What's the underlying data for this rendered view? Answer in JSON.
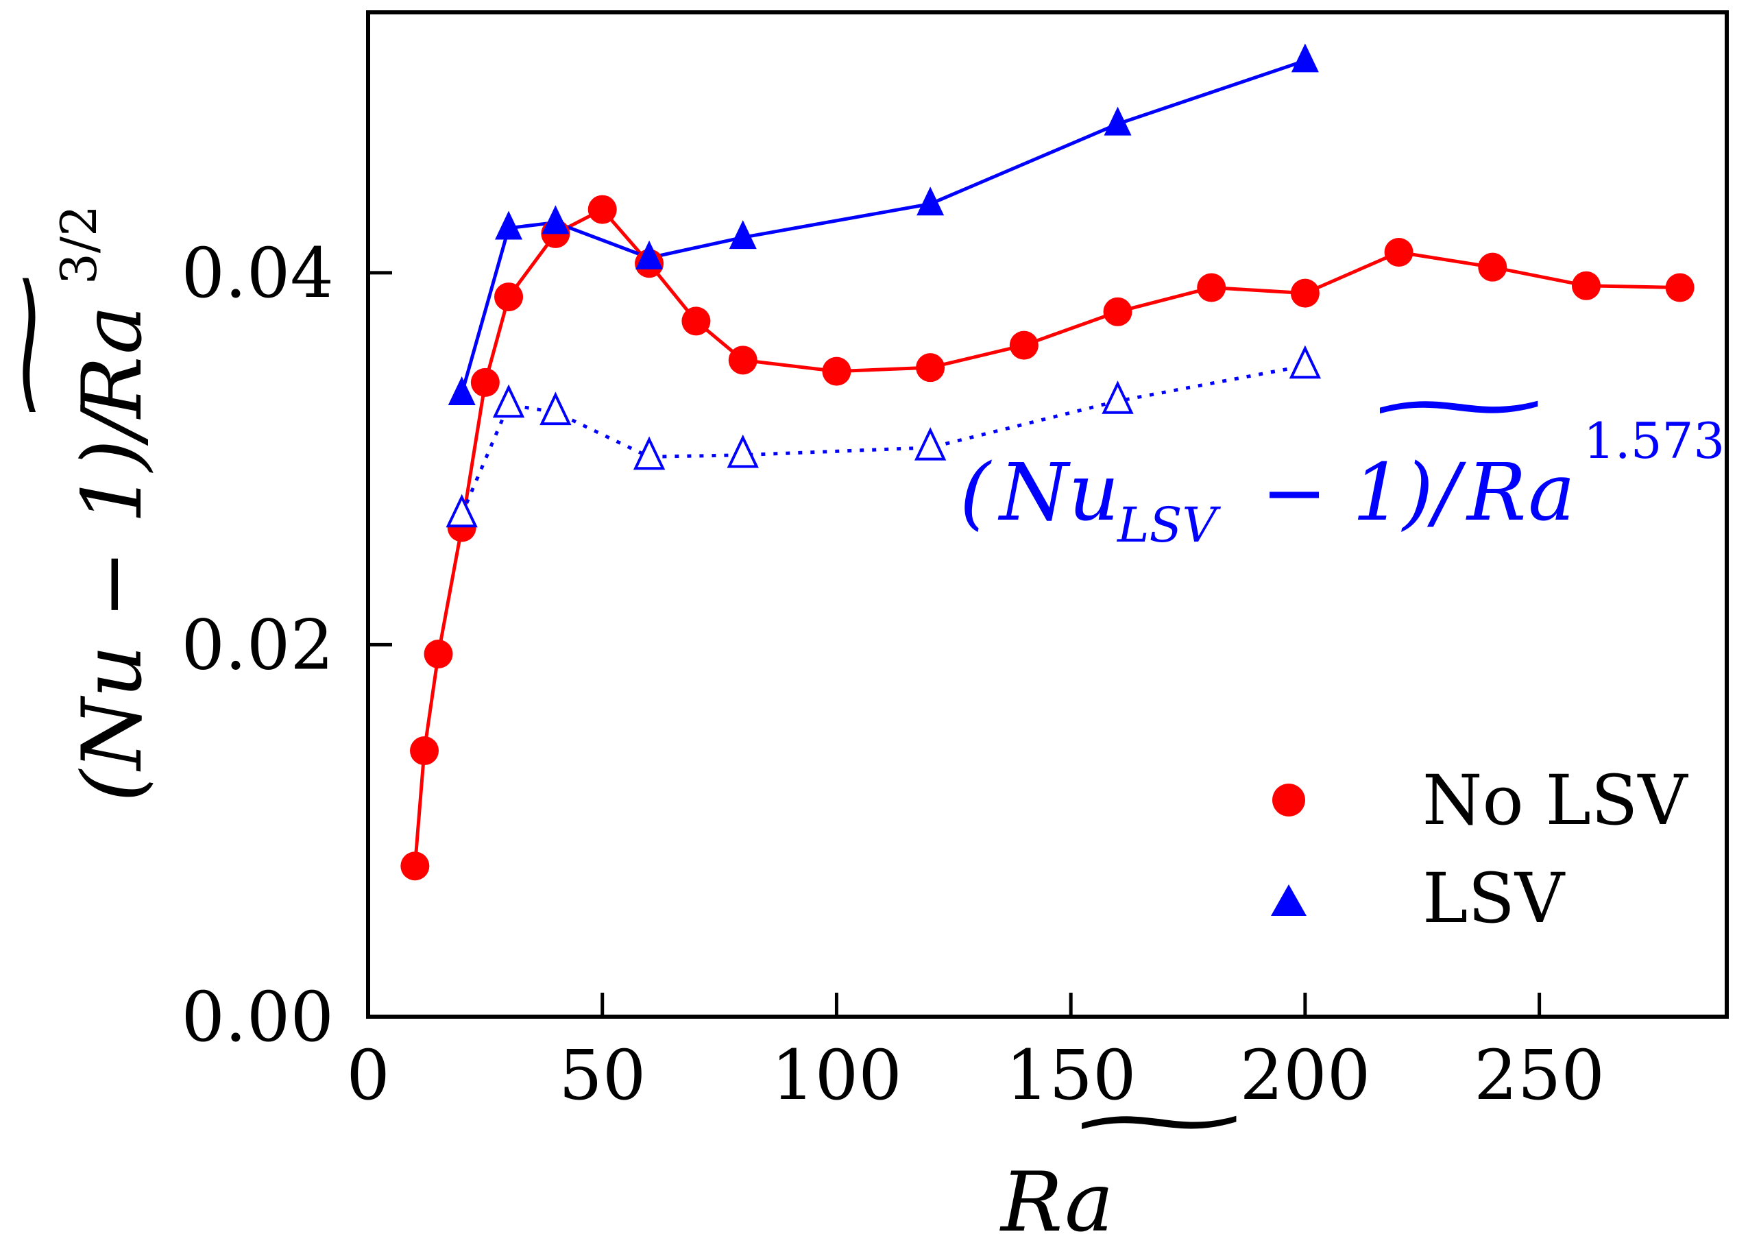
{
  "chart_data": {
    "type": "line",
    "title": "",
    "xlabel": "Ra~",
    "ylabel": "(Nu − 1)/Ra~^3/2",
    "xlim": [
      0,
      290
    ],
    "ylim": [
      0,
      0.054
    ],
    "x_ticks": [
      "0",
      "50",
      "100",
      "150",
      "200",
      "250"
    ],
    "y_ticks": [
      "0.00",
      "0.02",
      "0.04"
    ],
    "legend_position": "lower-right",
    "series": [
      {
        "name": "No LSV",
        "marker": "circle",
        "color": "#ff0000",
        "x": [
          10,
          12,
          15,
          20,
          25,
          30,
          40,
          50,
          60,
          70,
          80,
          100,
          120,
          140,
          160,
          180,
          200,
          220,
          240,
          260,
          280
        ],
        "y": [
          0.0081,
          0.0143,
          0.0195,
          0.0263,
          0.0341,
          0.0387,
          0.0421,
          0.0434,
          0.0405,
          0.0374,
          0.0353,
          0.0347,
          0.0349,
          0.0361,
          0.0379,
          0.0392,
          0.0389,
          0.0411,
          0.0403,
          0.0393,
          0.0392
        ]
      },
      {
        "name": "LSV",
        "marker": "triangle",
        "color": "#0000ff",
        "x": [
          20,
          30,
          40,
          60,
          80,
          120,
          160,
          200
        ],
        "y": [
          0.0335,
          0.0424,
          0.0427,
          0.0408,
          0.0419,
          0.0437,
          0.048,
          0.0514
        ]
      },
      {
        "name": "(Nu_LSV − 1)/Ra~^1.573",
        "marker": "triangle-open",
        "linestyle": "dotted",
        "color": "#0000ff",
        "x": [
          20,
          30,
          40,
          60,
          80,
          120,
          160,
          200
        ],
        "y": [
          0.027,
          0.0329,
          0.0325,
          0.0301,
          0.0302,
          0.0306,
          0.0331,
          0.035
        ]
      }
    ],
    "annotation": {
      "open": "(",
      "nu": "Nu",
      "sub": "LSV",
      "rest": " − 1)/",
      "ra": "Ra",
      "tilde": "~",
      "exp": "1.573",
      "color": "#0000ff"
    },
    "ylabel_parts": {
      "main": "(Nu − 1)/",
      "ra": "Ra",
      "tilde": "~",
      "exp": "3/2"
    },
    "xlabel_parts": {
      "ra": "Ra",
      "tilde": "~"
    }
  }
}
